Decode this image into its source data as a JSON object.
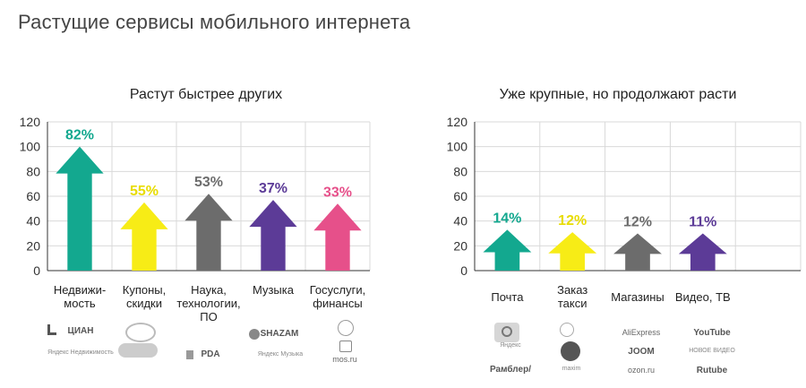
{
  "page_title": "Растущие сервисы мобильного интернета",
  "colors": {
    "teal": "#13a88f",
    "yellow": "#f7ec16",
    "gray": "#6c6c6c",
    "purple": "#5c3b97",
    "pink": "#e6508a",
    "grid": "#d9d9d9",
    "axis": "#333333"
  },
  "chart_data": [
    {
      "type": "bar",
      "title": "Растут быстрее других",
      "ylim": [
        0,
        120
      ],
      "yticks": [
        0,
        20,
        40,
        60,
        80,
        100,
        120
      ],
      "grid": true,
      "categories": [
        "Недвижи-|мость",
        "Купоны,|скидки",
        "Наука,|технологии,|ПО",
        "Музыка",
        "Госуслуги,|финансы"
      ],
      "values": [
        100,
        55,
        62,
        57,
        54
      ],
      "data_labels": [
        "82%",
        "55%",
        "53%",
        "37%",
        "33%"
      ],
      "colors": [
        "#13a88f",
        "#f7ec16",
        "#6c6c6c",
        "#5c3b97",
        "#e6508a"
      ]
    },
    {
      "type": "bar",
      "title": "Уже крупные, но продолжают расти",
      "ylim": [
        0,
        120
      ],
      "yticks": [
        0,
        20,
        40,
        60,
        80,
        100,
        120
      ],
      "grid": true,
      "categories": [
        "Почта",
        "Заказ|такси",
        "Магазины",
        "Видео, ТВ"
      ],
      "values": [
        33,
        31,
        30,
        30
      ],
      "data_labels": [
        "14%",
        "12%",
        "12%",
        "11%"
      ],
      "colors": [
        "#13a88f",
        "#f7ec16",
        "#6c6c6c",
        "#5c3b97"
      ]
    }
  ],
  "logos": {
    "left": [
      [
        "ЦИАН",
        "Яндекс Недвижимость"
      ],
      [
        "",
        ""
      ],
      [
        "PDA"
      ],
      [
        "SHAZAM",
        "Яндекс Музыка"
      ],
      [
        "mos.ru"
      ]
    ],
    "right": [
      [
        "Яндекс",
        "Рамблер/"
      ],
      [
        "maxim"
      ],
      [
        "AliExpress",
        "JOOM",
        "ozon.ru"
      ],
      [
        "YouTube",
        "НОВОЕ ВИДЕО",
        "Rutube"
      ]
    ]
  }
}
